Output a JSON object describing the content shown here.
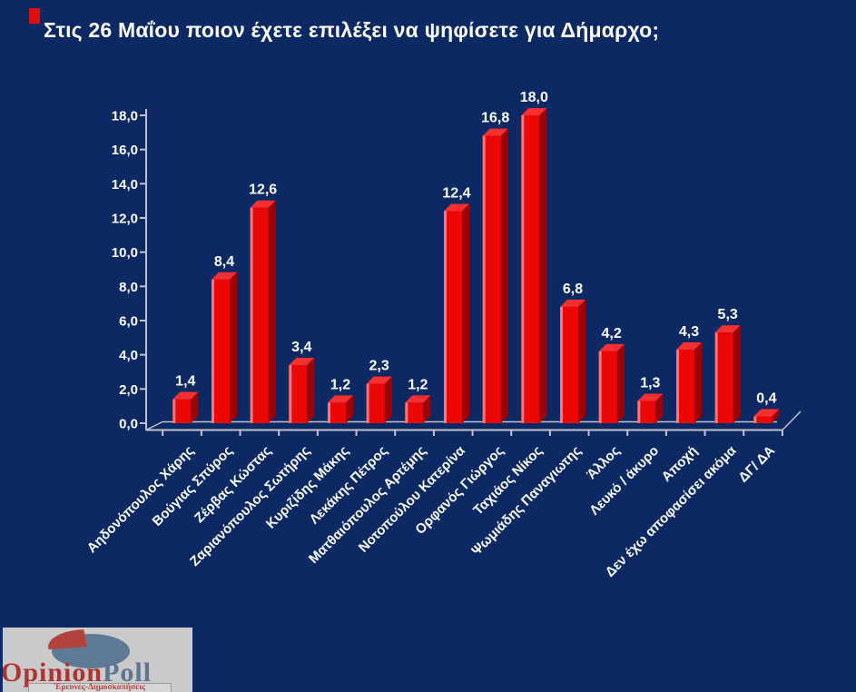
{
  "page": {
    "title": "Στις 26 Μαΐου ποιον έχετε επιλέξει να ψηφίσετε για Δήμαρχο;"
  },
  "colors": {
    "background": "#0C2963",
    "axis": "#C2C2CE",
    "text": "#FFFFFF",
    "bar_front": "#EC0707",
    "bar_side": "#9B0406",
    "bar_top": "#F63030",
    "bar_highlight": "#FF8A8A",
    "title_bullet": "#DD0F0F"
  },
  "chart_data": {
    "type": "bar",
    "title": "Στις 26 Μαΐου ποιον έχετε επιλέξει να ψηφίσετε για Δήμαρχο;",
    "xlabel": "",
    "ylabel": "",
    "grid": false,
    "legend": "none",
    "ylim": [
      0,
      18
    ],
    "y_axis": {
      "labels": [
        "0,0",
        "2,0",
        "4,0",
        "6,0",
        "8,0",
        "10,0",
        "12,0",
        "14,0",
        "16,0",
        "18,0"
      ],
      "step": 2
    },
    "categories": [
      "Αηδονόπουλος Χάρης",
      "Βούγιας Σπύρος",
      "Ζέρβας Κώστας",
      "Ζαριανόπουλος Σωτήρης",
      "Κυριζίδης Μάκης",
      "Λεκάκης Πέτρος",
      "Ματθαιόπουλος Αρτέμης",
      "Νοτοπούλου Κατερίνα",
      "Ορφανός Γιώργος",
      "Ταχιάος Νίκος",
      "Ψωμιάδης Παναγιωτης",
      "Άλλος",
      "Λευκό / άκυρο",
      "Αποχή",
      "Δεν έχω αποφασίσει ακόμα",
      "ΔΓ/ ΔΑ"
    ],
    "values": [
      1.4,
      8.4,
      12.6,
      3.4,
      1.2,
      2.3,
      1.2,
      12.4,
      16.8,
      18.0,
      6.8,
      4.2,
      1.3,
      4.3,
      5.3,
      0.4
    ],
    "value_labels": [
      "1,4",
      "8,4",
      "12,6",
      "3,4",
      "1,2",
      "2,3",
      "1,2",
      "12,4",
      "16,8",
      "18,0",
      "6,8",
      "4,2",
      "1,3",
      "4,3",
      "5,3",
      "0,4"
    ]
  },
  "logo": {
    "brand_primary": "Opinion",
    "brand_secondary": "Poll",
    "tagline": "Έρευνες-Δημοσκοπήσεις",
    "colors": {
      "box_bg": "#CACACA",
      "pie_blue": "#5E7A94",
      "pie_red": "#B2423E",
      "brand_primary_color": "#AE3432",
      "brand_secondary_color": "#5E7490",
      "tagline_color": "#B2423E",
      "tagline_border": "#999999",
      "tagline_bg": "#D6D6D6"
    }
  }
}
